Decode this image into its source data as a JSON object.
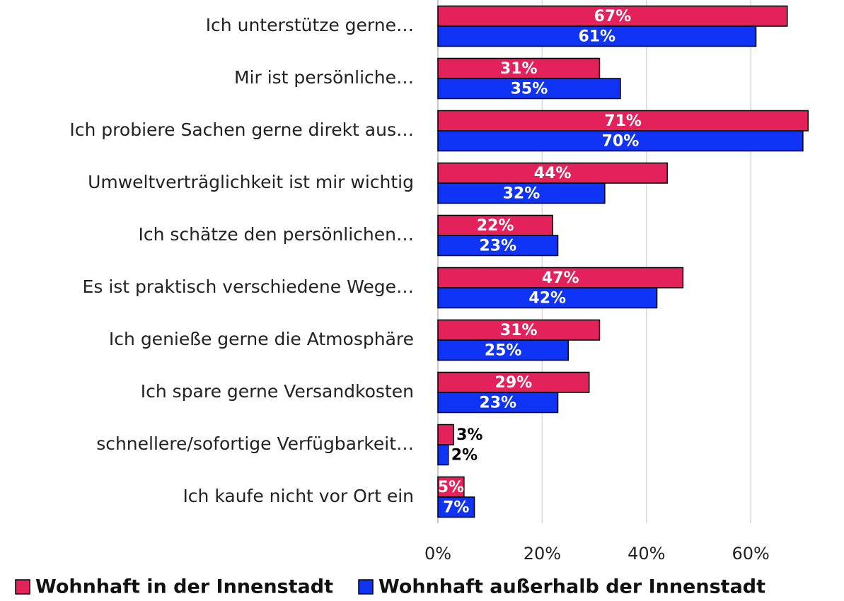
{
  "chart_data": {
    "type": "barh",
    "categories": [
      "Ich unterstütze gerne…",
      "Mir ist persönliche…",
      "Ich probiere Sachen gerne direkt aus…",
      "Umweltverträglichkeit ist mir wichtig",
      "Ich schätze den persönlichen…",
      "Es ist praktisch verschiedene Wege…",
      "Ich genieße gerne die Atmosphäre",
      "Ich spare gerne Versandkosten",
      "schnellere/sofortige Verfügbarkeit…",
      "Ich kaufe nicht vor Ort ein"
    ],
    "series": [
      {
        "name": "Wohnhaft in der Innenstadt",
        "color": "#e3215b",
        "values": [
          67,
          31,
          71,
          44,
          22,
          47,
          31,
          29,
          3,
          5
        ],
        "value_labels": [
          "67%",
          "31%",
          "71%",
          "44%",
          "22%",
          "47%",
          "31%",
          "29%",
          "3%",
          "5%"
        ]
      },
      {
        "name": "Wohnhaft außerhalb der Innenstadt",
        "color": "#1034f5",
        "values": [
          61,
          35,
          70,
          32,
          23,
          42,
          25,
          23,
          2,
          7
        ],
        "value_labels": [
          "61%",
          "35%",
          "70%",
          "32%",
          "23%",
          "42%",
          "25%",
          "23%",
          "2%",
          "7%"
        ]
      }
    ],
    "xlim": [
      0,
      75
    ],
    "xticks": [
      {
        "value": 0,
        "label": "0%"
      },
      {
        "value": 20,
        "label": "20%"
      },
      {
        "value": 40,
        "label": "40%"
      },
      {
        "value": 60,
        "label": "60%"
      }
    ],
    "grid": true,
    "legend": "bottom"
  }
}
